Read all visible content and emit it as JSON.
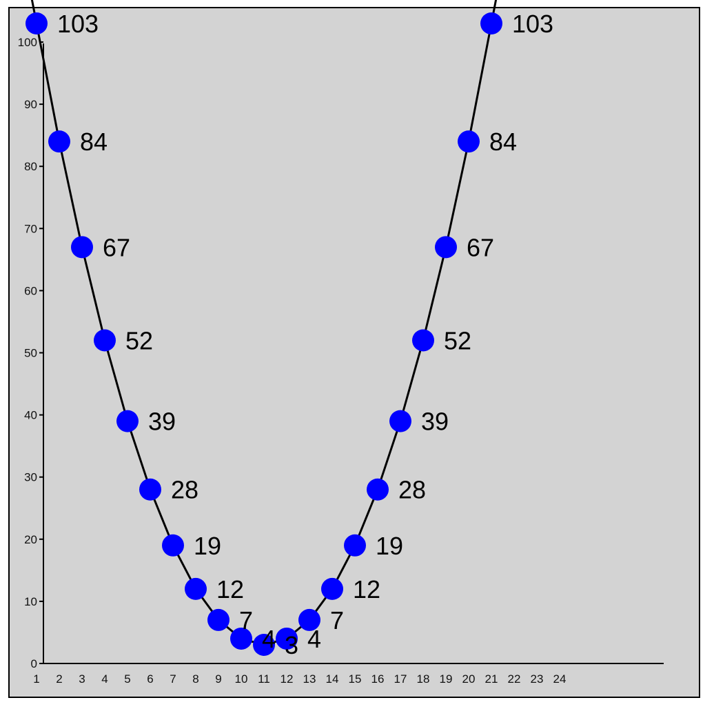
{
  "chart_data": {
    "type": "line",
    "title": "",
    "xlabel": "",
    "ylabel": "",
    "x_ticks": [
      "1",
      "2",
      "3",
      "4",
      "5",
      "6",
      "7",
      "8",
      "9",
      "10",
      "11",
      "12",
      "13",
      "14",
      "15",
      "16",
      "17",
      "18",
      "19",
      "20",
      "21",
      "22",
      "23",
      "24"
    ],
    "y_ticks": [
      0,
      10,
      20,
      30,
      40,
      50,
      60,
      70,
      80,
      90,
      100
    ],
    "ylim": [
      0,
      100
    ],
    "grid": false,
    "legend": "none",
    "markers": true,
    "series": [
      {
        "x": [
          1,
          2,
          3,
          4,
          5,
          6,
          7,
          8,
          9,
          10,
          11,
          12,
          13,
          14,
          15,
          16,
          17,
          18,
          19,
          20,
          21
        ],
        "values": [
          103,
          84,
          67,
          52,
          39,
          28,
          19,
          12,
          7,
          4,
          3,
          4,
          7,
          12,
          19,
          28,
          39,
          52,
          67,
          84,
          103
        ],
        "data_labels": [
          "103",
          "84",
          "67",
          "52",
          "39",
          "28",
          "19",
          "12",
          "7",
          "4",
          "3",
          "4",
          "7",
          "12",
          "19",
          "28",
          "39",
          "52",
          "67",
          "84",
          "103"
        ]
      }
    ],
    "colors": {
      "background": "#d3d3d3",
      "marker": "#0000ff",
      "line": "#000000",
      "axis": "#000000",
      "text": "#000000"
    }
  }
}
